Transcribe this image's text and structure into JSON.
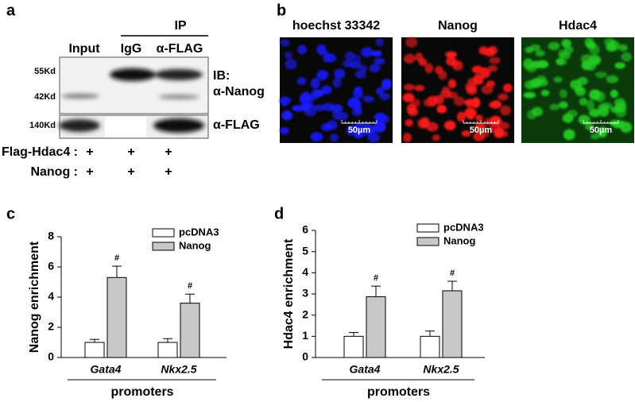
{
  "panel_a": {
    "label": "a",
    "ip_header": "IP",
    "columns": [
      "Input",
      "IgG",
      "α-FLAG"
    ],
    "markers": [
      "55Kd",
      "42Kd",
      "140Kd"
    ],
    "ib_labels": [
      "IB:",
      "α-Nanog",
      "α-FLAG"
    ],
    "rows": [
      {
        "label": "Flag-Hdac4 :",
        "values": [
          "+",
          "+",
          "+"
        ]
      },
      {
        "label": "Nanog :",
        "values": [
          "+",
          "+",
          "+"
        ]
      }
    ]
  },
  "panel_b": {
    "label": "b",
    "images": [
      {
        "title": "hoechst 33342",
        "scale": "50µm",
        "color": "#1a1aff"
      },
      {
        "title": "Nanog",
        "scale": "50µm",
        "color": "#ff1a1a"
      },
      {
        "title": "Hdac4",
        "scale": "50µm",
        "color": "#22cc22"
      }
    ]
  },
  "chart_data": [
    {
      "type": "bar",
      "label": "c",
      "y_label": "Nanog enrichment",
      "categories": [
        "Gata4",
        "Nkx2.5"
      ],
      "group_label": "promoters",
      "ylim": [
        0,
        8
      ],
      "yticks": [
        0,
        2,
        4,
        6,
        8
      ],
      "series": [
        {
          "name": "pcDNA3",
          "color": "#ffffff",
          "values": [
            1,
            1
          ],
          "errors": [
            0.2,
            0.25
          ]
        },
        {
          "name": "Nanog",
          "color": "#c8c8c8",
          "values": [
            5.3,
            3.6
          ],
          "errors": [
            0.75,
            0.6
          ],
          "annotations": [
            "#",
            "#"
          ]
        }
      ]
    },
    {
      "type": "bar",
      "label": "d",
      "y_label": "Hdac4 enrichment",
      "categories": [
        "Gata4",
        "Nkx2.5"
      ],
      "group_label": "promoters",
      "ylim": [
        0,
        6
      ],
      "yticks": [
        0,
        1,
        2,
        3,
        4,
        5,
        6
      ],
      "series": [
        {
          "name": "pcDNA3",
          "color": "#ffffff",
          "values": [
            1,
            1
          ],
          "errors": [
            0.18,
            0.25
          ]
        },
        {
          "name": "Nanog",
          "color": "#c8c8c8",
          "values": [
            2.87,
            3.15
          ],
          "errors": [
            0.5,
            0.45
          ],
          "annotations": [
            "#",
            "#"
          ]
        }
      ]
    }
  ]
}
